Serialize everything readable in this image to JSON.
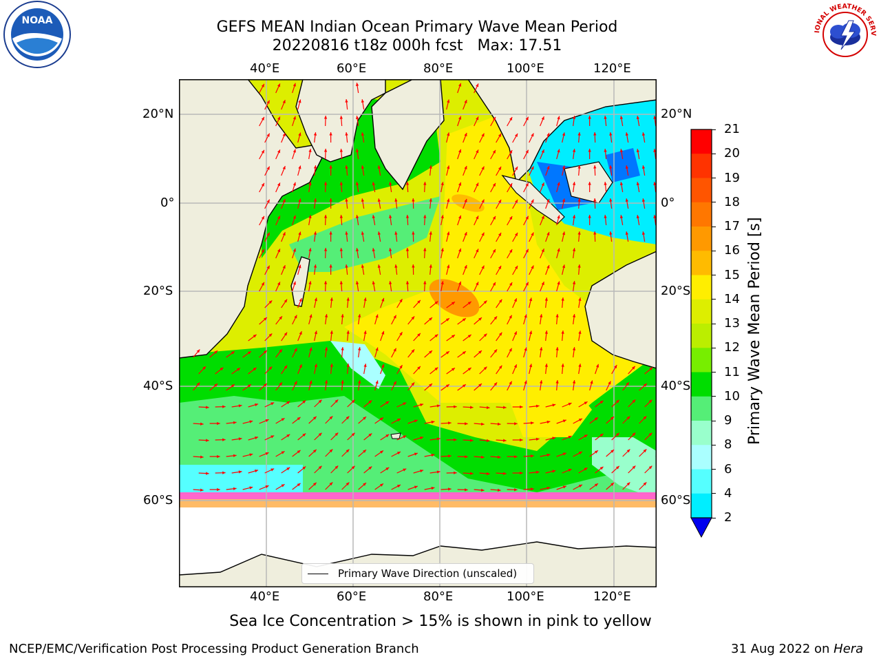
{
  "header": {
    "title_line1": "GEFS MEAN Indian Ocean Primary Wave Mean Period",
    "title_line2": "20220816 t18z 000h fcst   Max: 17.51"
  },
  "map": {
    "lon_labels_top": [
      "40°E",
      "60°E",
      "80°E",
      "100°E",
      "120°E"
    ],
    "lon_labels_bottom": [
      "40°E",
      "60°E",
      "80°E",
      "100°E",
      "120°E"
    ],
    "lat_labels_left": [
      "20°N",
      "0°",
      "20°S",
      "40°S",
      "60°S"
    ],
    "lat_labels_right": [
      "20°N",
      "0°",
      "20°S",
      "40°S",
      "60°S"
    ],
    "extent": {
      "lon_min": 20,
      "lon_max": 130,
      "lat_min": -78,
      "lat_max": 28
    },
    "land_color": "#efeedd",
    "ice_free_color": "#ffffff",
    "arrow_color": "#ff0000"
  },
  "legend": {
    "label": "Primary Wave Direction (unscaled)"
  },
  "colorbar": {
    "title": "Primary Wave Mean Period [s]",
    "ticks": [
      "21",
      "20",
      "19",
      "18",
      "17",
      "16",
      "15",
      "14",
      "13",
      "12",
      "11",
      "10",
      "9",
      "8",
      "6",
      "4",
      "2"
    ],
    "colors": [
      "#ff0000",
      "#ff3300",
      "#ff5500",
      "#ff7700",
      "#ff9900",
      "#ffbb00",
      "#ffee00",
      "#ddee00",
      "#bbee00",
      "#77ee00",
      "#00dd00",
      "#55ee77",
      "#99ffcc",
      "#aaffff",
      "#55ffff",
      "#00eeff",
      "#0077ff"
    ],
    "under_color": "#0000ee"
  },
  "caption": "Sea Ice Concentration > 15% is shown in pink to yellow",
  "footer": {
    "left": "NCEP/EMC/Verification Post Processing Product Generation Branch",
    "right_date": "31 Aug 2022 on ",
    "right_host": "Hera"
  },
  "logos": {
    "noaa_text": "NOAA",
    "nws_text": "NATIONAL WEATHER SERVICE"
  }
}
